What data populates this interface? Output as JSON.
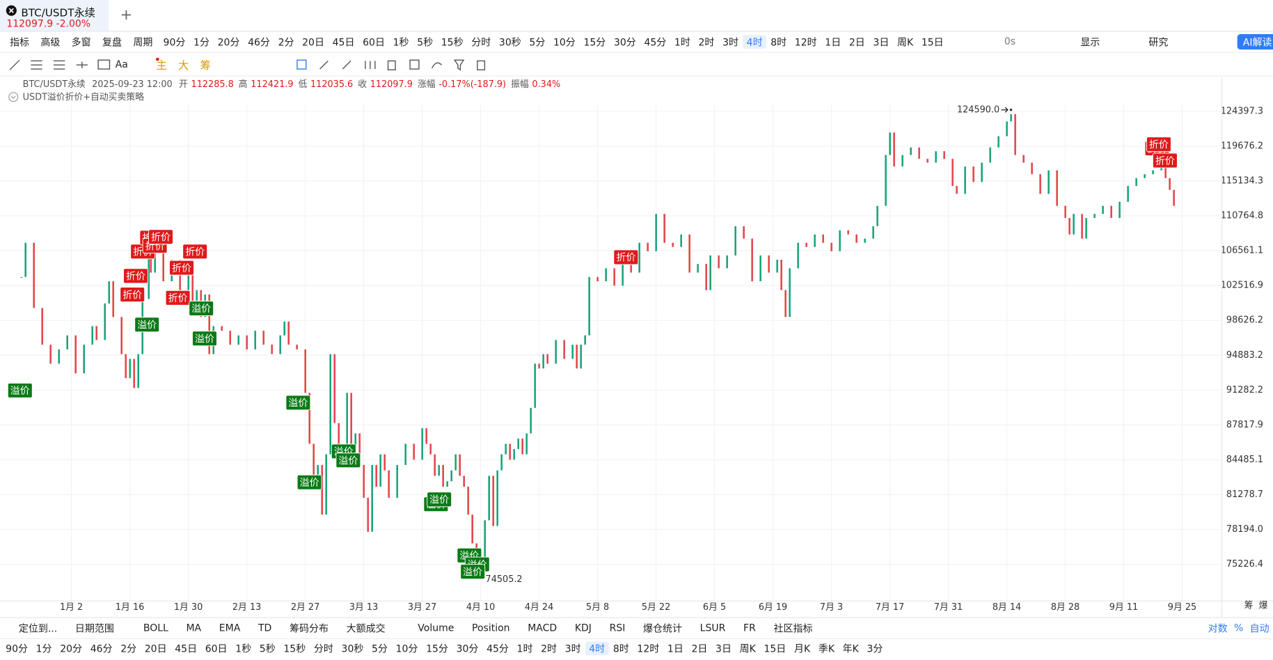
{
  "header": {
    "symbol": "BTC/USDT永续",
    "price": "112097.9",
    "change": "-2.00%"
  },
  "toolbar": [
    "指标",
    "高级",
    "多窗",
    "复盘",
    "周期"
  ],
  "intervals": [
    "90分",
    "1分",
    "20分",
    "46分",
    "2分",
    "20日",
    "45日",
    "60日",
    "1秒",
    "5秒",
    "15秒",
    "分时",
    "30秒",
    "5分",
    "10分",
    "15分",
    "30分",
    "45分",
    "1时",
    "2时",
    "3时",
    "4时",
    "8时",
    "12时",
    "1日",
    "2日",
    "3日",
    "周K",
    "15日"
  ],
  "active_interval": "4时",
  "toolbar_right": [
    "0s",
    "显示",
    "研究",
    "AI解读"
  ],
  "tool_labels": [
    "Aa",
    "主",
    "大",
    "筹"
  ],
  "ohlc": {
    "symbol": "BTC/USDT永续",
    "time": "2025-09-23 12:00",
    "items": [
      {
        "label": "开",
        "value": "112285.8"
      },
      {
        "label": "高",
        "value": "112421.9"
      },
      {
        "label": "低",
        "value": "112035.6"
      },
      {
        "label": "收",
        "value": "112097.9"
      },
      {
        "label": "涨幅",
        "value": "-0.17%(-187.9)"
      },
      {
        "label": "振幅",
        "value": "0.34%"
      }
    ]
  },
  "indicator": "USDT溢价折价+自动买卖策略",
  "chart_data": {
    "type": "candle-line",
    "log_scale": true,
    "grid": true,
    "up_color": "#1aa37a",
    "down_color": "#e2464b",
    "xlim": [
      -17.1,
      275.5
    ],
    "xticks": [
      {
        "value": 0,
        "label": "1月 2"
      },
      {
        "value": 14,
        "label": "1月 16"
      },
      {
        "value": 28,
        "label": "1月 30"
      },
      {
        "value": 42,
        "label": "2月 13"
      },
      {
        "value": 56,
        "label": "2月 27"
      },
      {
        "value": 70,
        "label": "3月 13"
      },
      {
        "value": 84,
        "label": "3月 27"
      },
      {
        "value": 98,
        "label": "4月 10"
      },
      {
        "value": 112,
        "label": "4月 24"
      },
      {
        "value": 126,
        "label": "5月 8"
      },
      {
        "value": 140,
        "label": "5月 22"
      },
      {
        "value": 154,
        "label": "6月 5"
      },
      {
        "value": 168,
        "label": "6月 19"
      },
      {
        "value": 182,
        "label": "7月 3"
      },
      {
        "value": 196,
        "label": "7月 17"
      },
      {
        "value": 210,
        "label": "7月 31"
      },
      {
        "value": 224,
        "label": "8月 14"
      },
      {
        "value": 238,
        "label": "8月 28"
      },
      {
        "value": 252,
        "label": "9月 11"
      },
      {
        "value": 266,
        "label": "9月 25"
      }
    ],
    "ylim": [
      72234,
      125411
    ],
    "yticks": [
      124397.3,
      119676.2,
      115134.3,
      110764.8,
      106561.1,
      102516.9,
      98626.2,
      94883.2,
      91282.2,
      87817.9,
      84485.1,
      81278.7,
      {
        "value": 78194,
        "label": "78194.0"
      },
      75226.4
    ],
    "x": [
      -12,
      -11,
      -9,
      -7,
      -5,
      -3,
      -1,
      1,
      3,
      5,
      6,
      8,
      9,
      10,
      12,
      13,
      14,
      15,
      16,
      17,
      18.5,
      19,
      20,
      22,
      24,
      26,
      28,
      29,
      30,
      31,
      32,
      33,
      34,
      36,
      38,
      40,
      42,
      44,
      46,
      48,
      50,
      51,
      52,
      54,
      56,
      57,
      58,
      59,
      60,
      61,
      62,
      63,
      64,
      65,
      66,
      67,
      68,
      69,
      70,
      71,
      72,
      73,
      74,
      75,
      76,
      78,
      80,
      82,
      84,
      85,
      86,
      87,
      88,
      89,
      90,
      91,
      92,
      93,
      94,
      95,
      96,
      97,
      98,
      99,
      100,
      101,
      102,
      103,
      104,
      105,
      106,
      107,
      108,
      109,
      110,
      111,
      112,
      113,
      114,
      116,
      118,
      120,
      121,
      122,
      123,
      124,
      126,
      128,
      130,
      132,
      134,
      136,
      138,
      140,
      142,
      144,
      146,
      148,
      150,
      152,
      153,
      155,
      157,
      159,
      161,
      163,
      165,
      167,
      169,
      170,
      171,
      172,
      174,
      176,
      178,
      180,
      182,
      184,
      186,
      188,
      190,
      192,
      193,
      195,
      196,
      197,
      199,
      201,
      203,
      205,
      207,
      209,
      211,
      212,
      214,
      216,
      218,
      220,
      222,
      224,
      225,
      226,
      228,
      230,
      232,
      234,
      236,
      238,
      239,
      240,
      242,
      243,
      245,
      247,
      249,
      251,
      253,
      255,
      257,
      259,
      261,
      262,
      263,
      264
    ],
    "values": [
      103500,
      107500,
      100000,
      96000,
      94000,
      95500,
      97000,
      93000,
      96000,
      98000,
      96500,
      100500,
      103000,
      99000,
      95000,
      92500,
      94500,
      91500,
      95000,
      101000,
      106000,
      104000,
      108000,
      103000,
      105500,
      102000,
      104500,
      100000,
      102000,
      99000,
      101500,
      95000,
      98000,
      97500,
      96000,
      97000,
      95500,
      97500,
      96000,
      95000,
      97000,
      98500,
      96000,
      95500,
      91000,
      86000,
      83000,
      84000,
      79500,
      85000,
      95000,
      88000,
      86000,
      84000,
      91000,
      85000,
      87000,
      84000,
      81000,
      78000,
      84000,
      82000,
      85000,
      83500,
      81000,
      84000,
      86000,
      84500,
      87500,
      86000,
      85000,
      83000,
      84000,
      82000,
      82500,
      83500,
      85000,
      83000,
      82000,
      79500,
      77000,
      76500,
      75500,
      79000,
      83000,
      78500,
      83500,
      85000,
      86000,
      84500,
      85500,
      86500,
      85000,
      87000,
      89500,
      94000,
      93500,
      95000,
      94000,
      96500,
      94500,
      96000,
      93500,
      96000,
      97000,
      103500,
      103000,
      104500,
      102500,
      105500,
      104000,
      107500,
      106500,
      111000,
      107500,
      107000,
      108500,
      104000,
      105000,
      102000,
      106000,
      104500,
      106000,
      109500,
      108000,
      103000,
      106000,
      104000,
      105500,
      102000,
      99000,
      104500,
      107500,
      107000,
      108500,
      107500,
      106500,
      109000,
      108500,
      107500,
      108000,
      109500,
      112000,
      118500,
      121500,
      117000,
      118500,
      119500,
      118000,
      117500,
      119000,
      118000,
      114500,
      113500,
      117000,
      115000,
      117500,
      119500,
      121000,
      123000,
      124000,
      118500,
      117500,
      116000,
      113500,
      116500,
      112000,
      110500,
      108500,
      111000,
      108000,
      110500,
      111000,
      112000,
      110500,
      112500,
      114500,
      115500,
      116000,
      116500,
      117500,
      115500,
      114000,
      112000
    ],
    "extremes": [
      {
        "label": "124590.0",
        "x": 225,
        "y": 124590
      },
      {
        "label": "74505.2",
        "x": 98,
        "y": 74505.2
      }
    ],
    "signal_colors": {
      "折价": "#e0191b",
      "溢价": "#0b7a16"
    },
    "signals": [
      {
        "label": "溢价",
        "x": -12.3,
        "y": 91242
      },
      {
        "label": "折价",
        "x": 14.6,
        "y": 101495
      },
      {
        "label": "折价",
        "x": 15.4,
        "y": 103616
      },
      {
        "label": "折价",
        "x": 17.1,
        "y": 106460
      },
      {
        "label": "溢价",
        "x": 18.1,
        "y": 98164
      },
      {
        "label": "折价",
        "x": 19.3,
        "y": 108110
      },
      {
        "label": "折价",
        "x": 20.0,
        "y": 107137
      },
      {
        "label": "折价",
        "x": 21.4,
        "y": 108205
      },
      {
        "label": "折价",
        "x": 25.5,
        "y": 101127
      },
      {
        "label": "折价",
        "x": 26.4,
        "y": 104557
      },
      {
        "label": "折价",
        "x": 29.6,
        "y": 106460
      },
      {
        "label": "溢价",
        "x": 31.1,
        "y": 99946
      },
      {
        "label": "溢价",
        "x": 31.9,
        "y": 96666
      },
      {
        "label": "溢价",
        "x": 54.3,
        "y": 90017
      },
      {
        "label": "溢价",
        "x": 57.0,
        "y": 82403
      },
      {
        "label": "溢价",
        "x": 65.2,
        "y": 85277
      },
      {
        "label": "溢价",
        "x": 66.3,
        "y": 84434
      },
      {
        "label": "溢价",
        "x": 87.3,
        "y": 80419
      },
      {
        "label": "溢价",
        "x": 88.1,
        "y": 80853
      },
      {
        "label": "溢价",
        "x": 95.3,
        "y": 75978
      },
      {
        "label": "溢价",
        "x": 97.2,
        "y": 75226
      },
      {
        "label": "溢价",
        "x": 96.1,
        "y": 74617
      },
      {
        "label": "折价",
        "x": 132.8,
        "y": 105791
      },
      {
        "label": "折价",
        "x": 260.0,
        "y": 119377
      },
      {
        "label": "折价",
        "x": 260.4,
        "y": 119919
      },
      {
        "label": "折价",
        "x": 261.9,
        "y": 117775
      }
    ]
  },
  "bottom_bar": [
    "定位到...",
    "日期范围",
    "BOLL",
    "MA",
    "EMA",
    "TD",
    "筹码分布",
    "大额成交",
    "Volume",
    "Position",
    "MACD",
    "KDJ",
    "RSI",
    "爆仓统计",
    "LSUR",
    "FR",
    "社区指标"
  ],
  "scale_options": [
    "对数",
    "%",
    "自动"
  ],
  "side_labels": [
    "筹",
    "爆"
  ],
  "bottom_intervals": [
    "90分",
    "1分",
    "20分",
    "46分",
    "2分",
    "20日",
    "45日",
    "60日",
    "1秒",
    "5秒",
    "15秒",
    "分时",
    "30秒",
    "5分",
    "10分",
    "15分",
    "30分",
    "45分",
    "1时",
    "2时",
    "3时",
    "4时",
    "8时",
    "12时",
    "1日",
    "2日",
    "3日",
    "周K",
    "15日",
    "月K",
    "季K",
    "年K",
    "3分"
  ]
}
